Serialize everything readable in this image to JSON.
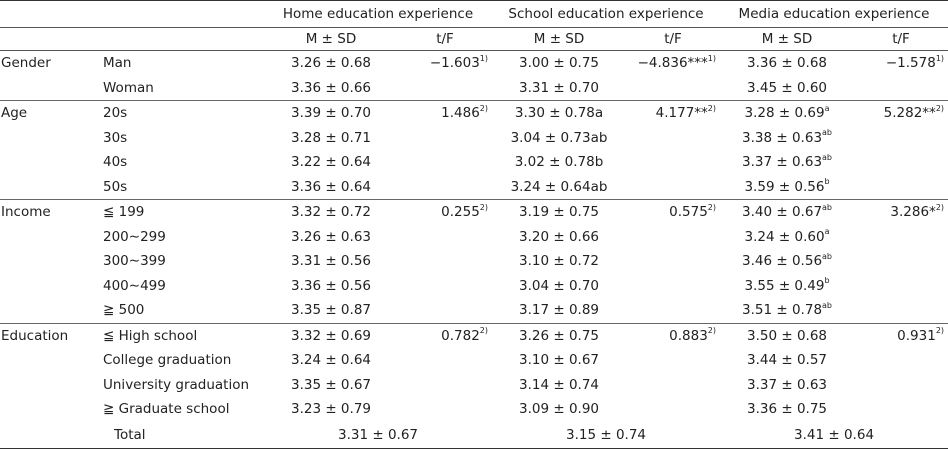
{
  "header": {
    "groups": [
      "Home education experience",
      "School education experience",
      "Media education experience"
    ],
    "msd": "M ± SD",
    "tf": "t/F"
  },
  "rows": [
    {
      "var": "Gender",
      "cat": "Man",
      "h": "3.26 ± 0.68",
      "ht": "−1.603",
      "hs": "1)",
      "s": "3.00 ± 0.75",
      "st": "−4.836***",
      "ss": "1)",
      "m": "3.36 ± 0.68",
      "msup": "",
      "mt": "−1.578",
      "mts": "1)"
    },
    {
      "var": "",
      "cat": "Woman",
      "h": "3.36 ± 0.66",
      "ht": "",
      "hs": "",
      "s": "3.31 ± 0.70",
      "st": "",
      "ss": "",
      "m": "3.45 ± 0.60",
      "msup": "",
      "mt": "",
      "mts": ""
    },
    {
      "var": "Age",
      "cat": "20s",
      "h": "3.39 ± 0.70",
      "ht": "1.486",
      "hs": "2)",
      "s": "3.30 ± 0.78a",
      "st": "4.177**",
      "ss": "2)",
      "m": "3.28 ± 0.69",
      "msup": "a",
      "mt": "5.282**",
      "mts": "2)"
    },
    {
      "var": "",
      "cat": "30s",
      "h": "3.28 ± 0.71",
      "ht": "",
      "hs": "",
      "s": "3.04 ± 0.73ab",
      "st": "",
      "ss": "",
      "m": "3.38 ± 0.63",
      "msup": "ab",
      "mt": "",
      "mts": ""
    },
    {
      "var": "",
      "cat": "40s",
      "h": "3.22 ± 0.64",
      "ht": "",
      "hs": "",
      "s": "3.02 ± 0.78b",
      "st": "",
      "ss": "",
      "m": "3.37 ± 0.63",
      "msup": "ab",
      "mt": "",
      "mts": ""
    },
    {
      "var": "",
      "cat": "50s",
      "h": "3.36 ± 0.64",
      "ht": "",
      "hs": "",
      "s": "3.24 ± 0.64ab",
      "st": "",
      "ss": "",
      "m": "3.59 ± 0.56",
      "msup": "b",
      "mt": "",
      "mts": ""
    },
    {
      "var": "Income",
      "cat": "≦ 199",
      "h": "3.32 ± 0.72",
      "ht": "0.255",
      "hs": "2)",
      "s": "3.19 ± 0.75",
      "st": "0.575",
      "ss": "2)",
      "m": "3.40 ± 0.67",
      "msup": "ab",
      "mt": "3.286*",
      "mts": "2)"
    },
    {
      "var": "",
      "cat": "200∼299",
      "h": "3.26 ± 0.63",
      "ht": "",
      "hs": "",
      "s": "3.20 ± 0.66",
      "st": "",
      "ss": "",
      "m": "3.24 ± 0.60",
      "msup": "a",
      "mt": "",
      "mts": ""
    },
    {
      "var": "",
      "cat": "300∼399",
      "h": "3.31 ± 0.56",
      "ht": "",
      "hs": "",
      "s": "3.10 ± 0.72",
      "st": "",
      "ss": "",
      "m": "3.46 ± 0.56",
      "msup": "ab",
      "mt": "",
      "mts": ""
    },
    {
      "var": "",
      "cat": "400∼499",
      "h": "3.36 ± 0.56",
      "ht": "",
      "hs": "",
      "s": "3.04 ± 0.70",
      "st": "",
      "ss": "",
      "m": "3.55 ± 0.49",
      "msup": "b",
      "mt": "",
      "mts": ""
    },
    {
      "var": "",
      "cat": "≧ 500",
      "h": "3.35 ± 0.87",
      "ht": "",
      "hs": "",
      "s": "3.17 ± 0.89",
      "st": "",
      "ss": "",
      "m": "3.51 ± 0.78",
      "msup": "ab",
      "mt": "",
      "mts": ""
    },
    {
      "var": "Education",
      "cat": "≦ High school",
      "h": "3.32 ± 0.69",
      "ht": "0.782",
      "hs": "2)",
      "s": "3.26 ± 0.75",
      "st": "0.883",
      "ss": "2)",
      "m": "3.50 ± 0.68",
      "msup": "",
      "mt": "0.931",
      "mts": "2)"
    },
    {
      "var": "",
      "cat": "College graduation",
      "h": "3.24 ± 0.64",
      "ht": "",
      "hs": "",
      "s": "3.10 ± 0.67",
      "st": "",
      "ss": "",
      "m": "3.44 ± 0.57",
      "msup": "",
      "mt": "",
      "mts": ""
    },
    {
      "var": "",
      "cat": "University graduation",
      "h": "3.35 ± 0.67",
      "ht": "",
      "hs": "",
      "s": "3.14 ± 0.74",
      "st": "",
      "ss": "",
      "m": "3.37 ± 0.63",
      "msup": "",
      "mt": "",
      "mts": ""
    },
    {
      "var": "",
      "cat": "≧ Graduate school",
      "h": "3.23 ± 0.79",
      "ht": "",
      "hs": "",
      "s": "3.09 ± 0.90",
      "st": "",
      "ss": "",
      "m": "3.36 ± 0.75",
      "msup": "",
      "mt": "",
      "mts": ""
    }
  ],
  "total": {
    "label": "Total",
    "home": "3.31 ± 0.67",
    "school": "3.15 ± 0.74",
    "media": "3.41 ± 0.64"
  }
}
